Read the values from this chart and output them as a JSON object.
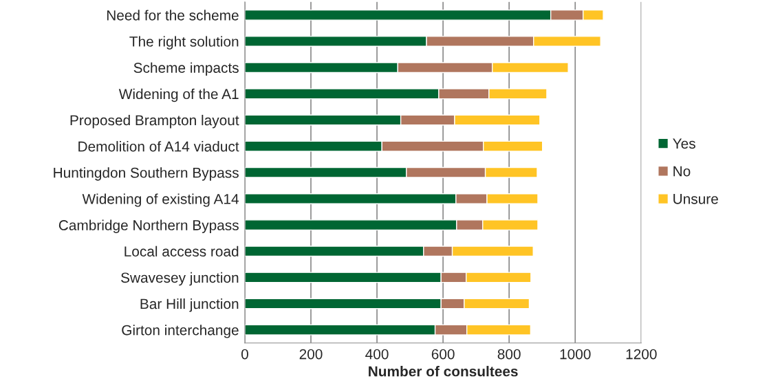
{
  "chart_data": {
    "type": "bar",
    "orientation": "horizontal",
    "stacked": true,
    "xlabel": "Number of consultees",
    "categories": [
      "Need for the scheme",
      "The right solution",
      "Scheme impacts",
      "Widening of the A1",
      "Proposed Brampton layout",
      "Demolition of A14 viaduct",
      "Huntingdon Southern Bypass",
      "Widening of existing A14",
      "Cambridge Northern Bypass",
      "Local access road",
      "Swavesey junction",
      "Bar Hill junction",
      "Girton interchange"
    ],
    "series": [
      {
        "name": "Yes",
        "color": "#006633",
        "values": [
          926,
          550,
          463,
          587,
          472,
          415,
          489,
          639,
          641,
          541,
          594,
          594,
          576
        ]
      },
      {
        "name": "No",
        "color": "#b0765e",
        "values": [
          98,
          324,
          286,
          152,
          163,
          307,
          239,
          94,
          79,
          87,
          76,
          70,
          96
        ]
      },
      {
        "name": "Unsure",
        "color": "#ffc425",
        "values": [
          61,
          203,
          230,
          175,
          258,
          179,
          157,
          154,
          167,
          245,
          196,
          197,
          193
        ]
      }
    ],
    "xlim": [
      0,
      1200
    ],
    "xticks": [
      0,
      200,
      400,
      600,
      800,
      1000,
      1200
    ],
    "grid": "x",
    "legend": "right"
  }
}
